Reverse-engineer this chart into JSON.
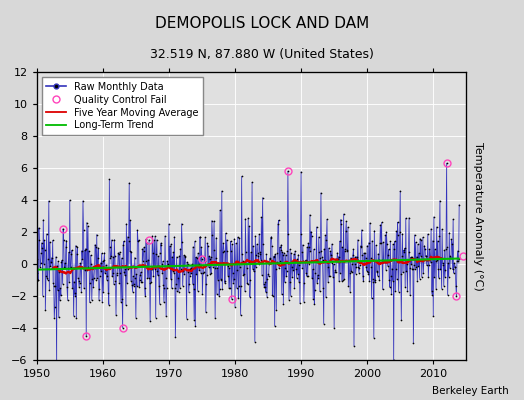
{
  "title": "DEMOPOLIS LOCK AND DAM",
  "subtitle": "32.519 N, 87.880 W (United States)",
  "ylabel": "Temperature Anomaly (°C)",
  "attribution": "Berkeley Earth",
  "xlim": [
    1950,
    2015
  ],
  "ylim": [
    -6,
    12
  ],
  "yticks": [
    -6,
    -4,
    -2,
    0,
    2,
    4,
    6,
    8,
    10,
    12
  ],
  "xticks": [
    1950,
    1960,
    1970,
    1980,
    1990,
    2000,
    2010
  ],
  "bg_color": "#d8d8d8",
  "plot_bg_color": "#e0e0e0",
  "seed": 12345,
  "n_months": 768,
  "start_year": 1950,
  "moving_avg_window": 60,
  "raw_line_color": "#3333bb",
  "raw_dot_color": "#000000",
  "raw_fill_color": "#7777cc",
  "moving_avg_color": "#dd0000",
  "trend_color": "#00bb00",
  "qc_fail_color": "#ff44bb",
  "title_fontsize": 11,
  "subtitle_fontsize": 9,
  "tick_fontsize": 8,
  "ylabel_fontsize": 8
}
